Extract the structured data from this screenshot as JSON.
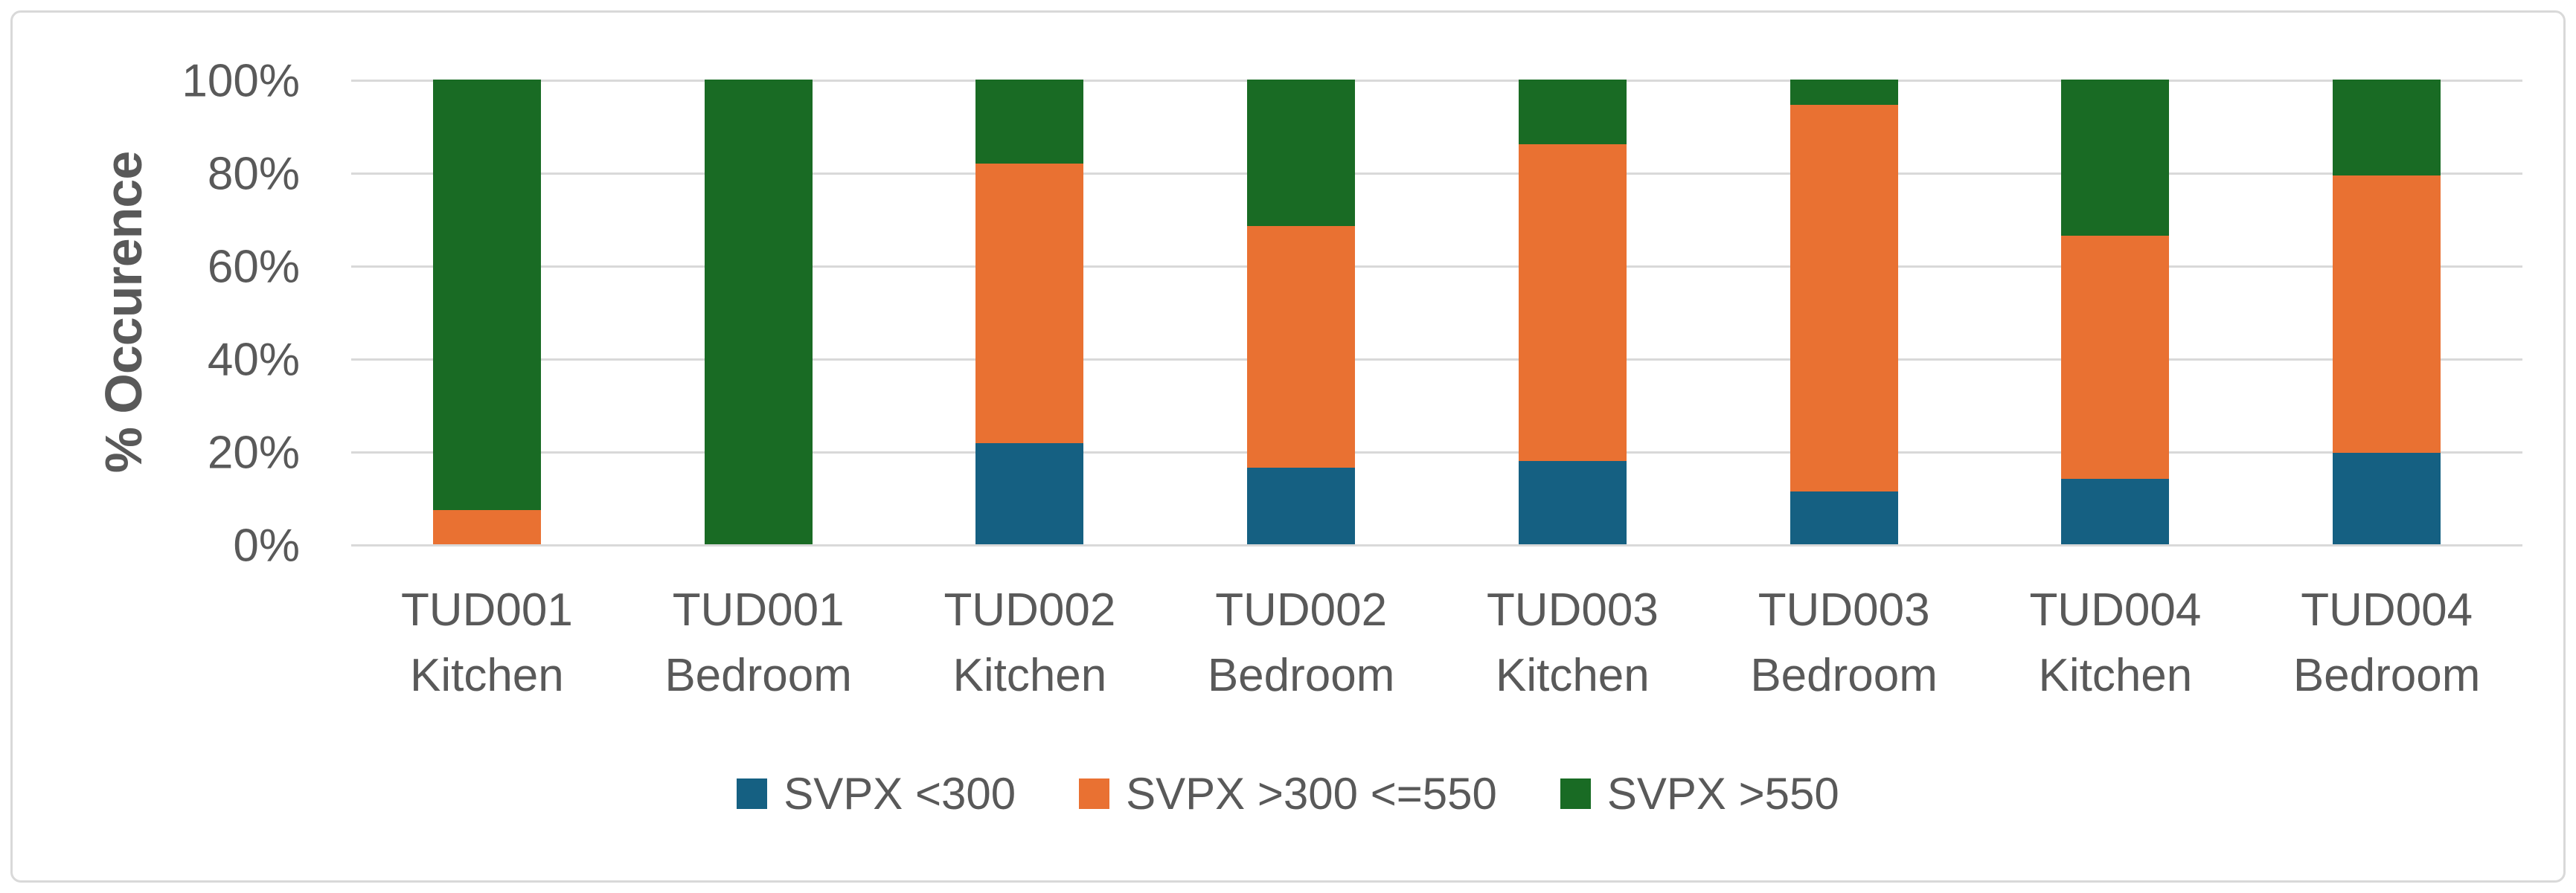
{
  "chart_data": {
    "type": "bar",
    "stacked": true,
    "percent_stacked": true,
    "title": "",
    "xlabel": "",
    "ylabel": "% Occurence",
    "ylim": [
      0,
      100
    ],
    "y_ticks": [
      "0%",
      "20%",
      "40%",
      "60%",
      "80%",
      "100%"
    ],
    "grid": true,
    "legend_position": "bottom",
    "categories": [
      {
        "line1": "TUD001",
        "line2": "Kitchen"
      },
      {
        "line1": "TUD001",
        "line2": "Bedroom"
      },
      {
        "line1": "TUD002",
        "line2": "Kitchen"
      },
      {
        "line1": "TUD002",
        "line2": "Bedroom"
      },
      {
        "line1": "TUD003",
        "line2": "Kitchen"
      },
      {
        "line1": "TUD003",
        "line2": "Bedroom"
      },
      {
        "line1": "TUD004",
        "line2": "Kitchen"
      },
      {
        "line1": "TUD004",
        "line2": "Bedroom"
      }
    ],
    "series": [
      {
        "name": "SVPX <300",
        "color": "#156082",
        "values": [
          0,
          0,
          21.7,
          16.5,
          17.9,
          11.3,
          14.1,
          19.7
        ]
      },
      {
        "name": "SVPX >300 <=550",
        "color": "#E97132",
        "values": [
          7.3,
          0,
          60.3,
          52.0,
          68.2,
          83.3,
          52.3,
          59.6
        ]
      },
      {
        "name": "SVPX >550",
        "color": "#196B24",
        "values": [
          92.7,
          100,
          18.0,
          31.5,
          13.9,
          5.4,
          33.6,
          20.7
        ]
      }
    ]
  },
  "colors": {
    "gridline": "#D9D9D9",
    "frame_border": "#D9D9D9",
    "axis_text": "#595959",
    "background": "#ffffff"
  }
}
